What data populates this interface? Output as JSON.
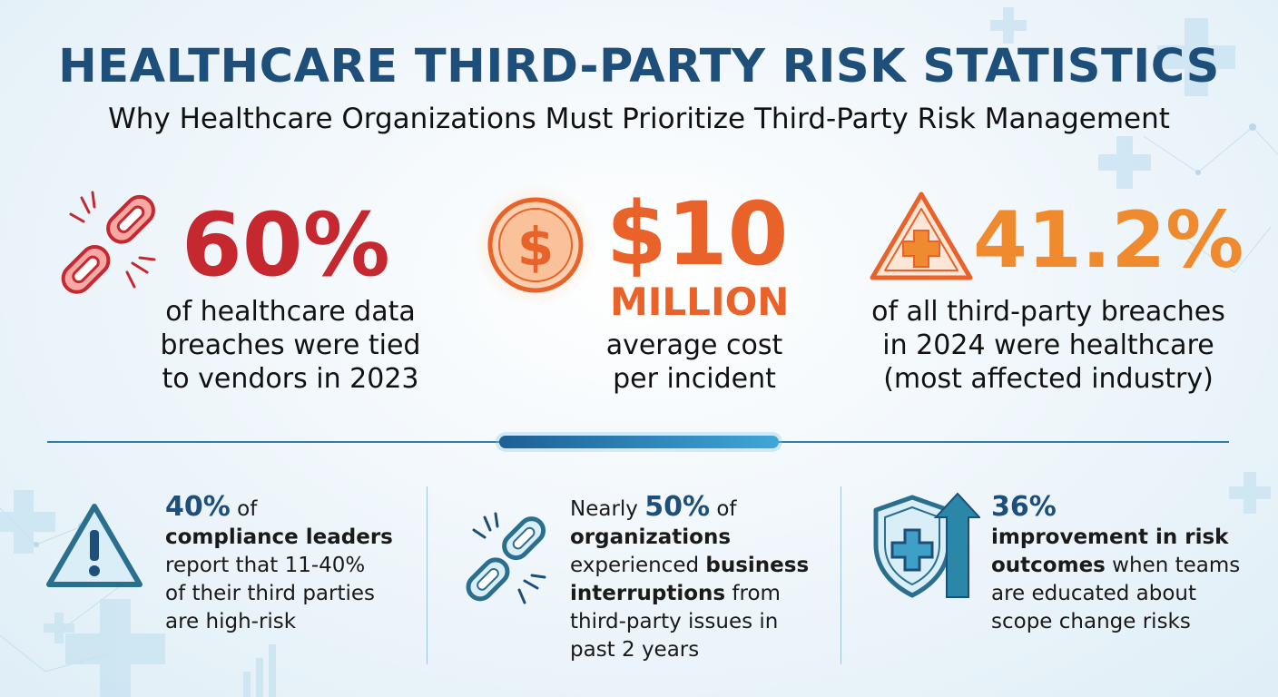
{
  "header": {
    "title": "HEALTHCARE THIRD-PARTY RISK STATISTICS",
    "subtitle": "Why Healthcare Organizations Must Prioritize Third-Party Risk Management"
  },
  "colors": {
    "title_blue": "#1d4f7a",
    "stat_red": "#c62830",
    "stat_orange": "#e8622a",
    "stat_light_orange": "#f08a2e",
    "icon_teal": "#2b87a8"
  },
  "top_stats": [
    {
      "icon": "broken-chain-icon",
      "value": "60%",
      "lines": [
        "of healthcare data",
        "breaches were tied",
        "to vendors in 2023"
      ]
    },
    {
      "icon": "dollar-coin-icon",
      "value": "$10",
      "unit": "MILLION",
      "lines": [
        "average cost",
        "per incident"
      ]
    },
    {
      "icon": "warning-medical-icon",
      "value": "41.2%",
      "lines": [
        "of all third-party breaches",
        "in 2024 were healthcare",
        "(most affected industry)"
      ]
    }
  ],
  "bottom_stats": [
    {
      "icon": "warning-triangle-icon",
      "pct": "40%",
      "after_pct": " of",
      "lines": [
        "compliance leaders",
        "report that 11-40%",
        "of their third parties",
        "are high-risk"
      ]
    },
    {
      "icon": "broken-chain-icon",
      "prefix": "Nearly ",
      "pct": "50%",
      "after_pct": " of",
      "line2": "organizations",
      "line3a": "experienced ",
      "line3b": "business",
      "line4a": "interruptions",
      "line4b": " from",
      "line5": "third-party issues in",
      "line6": "past 2 years"
    },
    {
      "icon": "shield-arrow-icon",
      "pct": "36%",
      "line2": "improvement in risk",
      "line3a": "outcomes",
      "line3b": " when teams",
      "line4": "are educated about",
      "line5": "scope change risks"
    }
  ]
}
